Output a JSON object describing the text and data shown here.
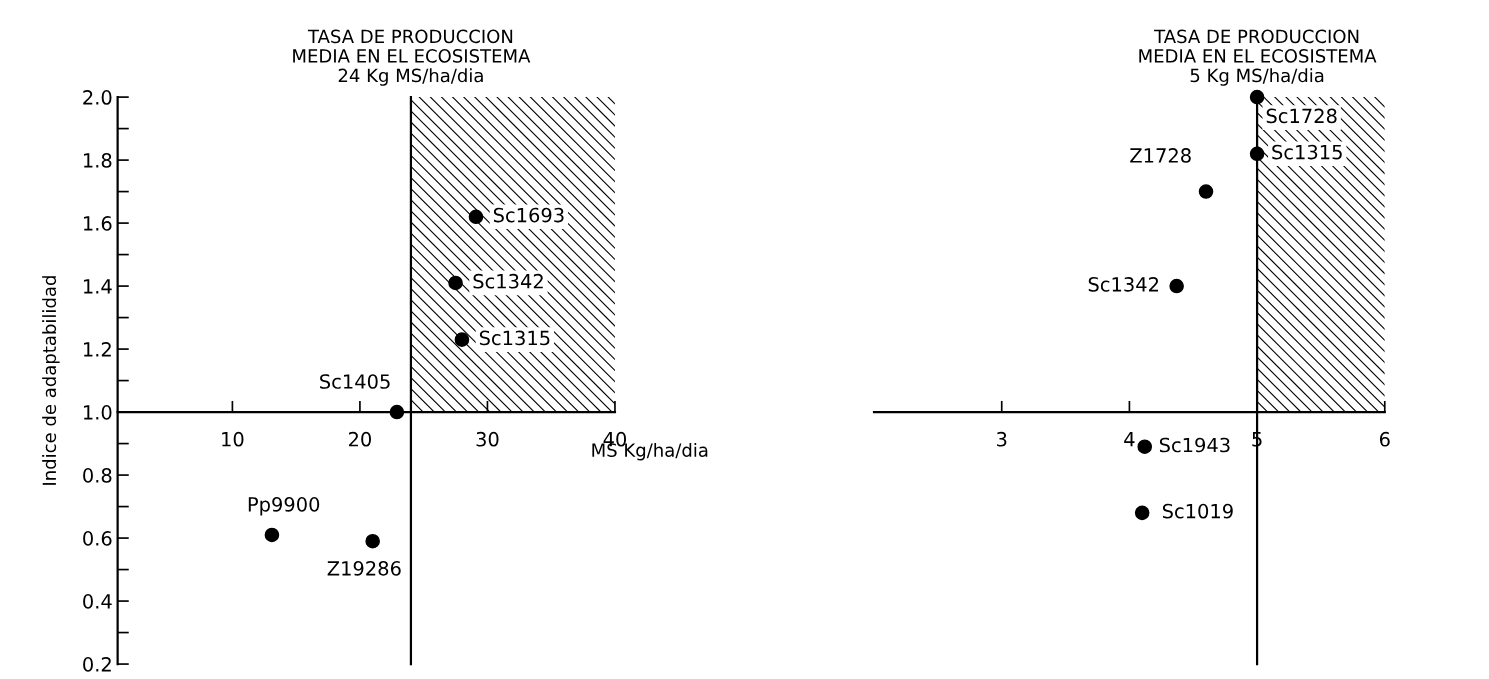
{
  "chart_data": [
    {
      "type": "scatter",
      "xlabel": "MS Kg/ha/dia",
      "ylabel": "Indice de adaptabilidad",
      "color": "#000000",
      "marker": "circle",
      "x": [
        29.1,
        27.5,
        28.0,
        22.9,
        13.1,
        21.0
      ],
      "values": [
        1.62,
        1.41,
        1.23,
        1.0,
        0.61,
        0.59
      ],
      "xlim": [
        1,
        40
      ],
      "xticks": [
        10,
        20,
        30,
        40
      ],
      "ylim": [
        0.2,
        2.0
      ],
      "yticks": [
        0.2,
        {
          "value": 0.3,
          "label": null
        },
        0.4,
        {
          "value": 0.5,
          "label": null
        },
        0.6,
        {
          "value": 0.7,
          "label": null
        },
        0.8,
        {
          "value": 0.9,
          "label": null
        },
        {
          "value": 1.0,
          "label": "1.0"
        },
        {
          "value": 1.1,
          "label": null
        },
        1.2,
        {
          "value": 1.3,
          "label": null
        },
        1.4,
        {
          "value": 1.5,
          "label": null
        },
        1.6,
        {
          "value": 1.7,
          "label": null
        },
        1.8,
        {
          "value": 1.9,
          "label": null
        },
        {
          "value": 2.0,
          "label": "2.0"
        }
      ],
      "ref_lines": [
        {
          "axis": "x",
          "value": 24,
          "label": "TASA DE PRODUCCION\nMEDIA EN EL ECOSISTEMA\n24 Kg MS/ha/dia",
          "color": "#000000"
        }
      ],
      "bands": [
        {
          "axis": "y",
          "from": 1.0,
          "to": 2.0,
          "color": "#000000"
        }
      ],
      "annotations": [
        {
          "text": "Sc1693",
          "x": 29.1,
          "y": 1.62
        },
        {
          "text": "Sc1342",
          "x": 27.5,
          "y": 1.41
        },
        {
          "text": "Sc1315",
          "x": 28.0,
          "y": 1.23
        },
        {
          "text": "Sc1405",
          "x": 22.9,
          "y": 1.0
        },
        {
          "text": "Pp9900",
          "x": 13.1,
          "y": 0.61
        },
        {
          "text": "Z19286",
          "x": 21.0,
          "y": 0.59
        }
      ]
    },
    {
      "type": "scatter",
      "color": "#000000",
      "marker": "circle",
      "tick_labels": "x",
      "x": [
        5.0,
        5.0,
        4.6,
        4.37,
        4.12,
        4.1
      ],
      "values": [
        2.0,
        1.82,
        1.7,
        1.4,
        0.89,
        0.68
      ],
      "xlim": [
        2,
        6
      ],
      "xticks": [
        3,
        4,
        5,
        6
      ],
      "ylim": [
        0.2,
        2.0
      ],
      "ref_lines": [
        {
          "axis": "x",
          "value": 5,
          "label": "TASA DE PRODUCCION\nMEDIA EN EL ECOSISTEMA\n5 Kg MS/ha/dia",
          "color": "#000000"
        }
      ],
      "bands": [
        {
          "axis": "y",
          "from": 1.0,
          "to": 2.0,
          "color": "#000000"
        }
      ],
      "annotations": [
        {
          "text": "Sc1728",
          "x": 5.0,
          "y": 2.0
        },
        {
          "text": "Sc1315",
          "x": 5.0,
          "y": 1.82
        },
        {
          "text": "Z1728",
          "x": 4.6,
          "y": 1.7
        },
        {
          "text": "Sc1342",
          "x": 4.37,
          "y": 1.4
        },
        {
          "text": "Sc1943",
          "x": 4.12,
          "y": 0.89
        },
        {
          "text": "Sc1019",
          "x": 4.1,
          "y": 0.68
        }
      ]
    }
  ]
}
